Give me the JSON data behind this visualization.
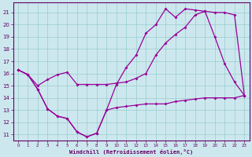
{
  "xlabel": "Windchill (Refroidissement éolien,°C)",
  "bg_color": "#cce8ee",
  "line_color": "#990099",
  "grid_color": "#99cccc",
  "axis_color": "#660066",
  "xlim": [
    -0.5,
    23.5
  ],
  "ylim": [
    10.5,
    21.8
  ],
  "xticks": [
    0,
    1,
    2,
    3,
    4,
    5,
    6,
    7,
    8,
    9,
    10,
    11,
    12,
    13,
    14,
    15,
    16,
    17,
    18,
    19,
    20,
    21,
    22,
    23
  ],
  "yticks": [
    11,
    12,
    13,
    14,
    15,
    16,
    17,
    18,
    19,
    20,
    21
  ],
  "line1_x": [
    0,
    1,
    2,
    3,
    4,
    5,
    6,
    7,
    8,
    9,
    10,
    11,
    12,
    13,
    14,
    15,
    16,
    17,
    18,
    19,
    20,
    21,
    22,
    23
  ],
  "line1_y": [
    16.3,
    15.9,
    14.7,
    13.1,
    12.5,
    12.3,
    11.2,
    10.8,
    11.1,
    13.0,
    13.2,
    13.3,
    13.4,
    13.5,
    13.5,
    13.5,
    13.7,
    13.8,
    13.9,
    14.0,
    14.0,
    14.0,
    14.0,
    14.2
  ],
  "line2_x": [
    0,
    1,
    2,
    3,
    4,
    5,
    6,
    7,
    8,
    9,
    10,
    11,
    12,
    13,
    14,
    15,
    16,
    17,
    18,
    19,
    20,
    21,
    22,
    23
  ],
  "line2_y": [
    16.3,
    15.9,
    14.7,
    13.1,
    12.5,
    12.3,
    11.2,
    10.8,
    11.1,
    13.0,
    15.1,
    16.5,
    17.5,
    19.3,
    20.0,
    21.3,
    20.6,
    21.3,
    21.2,
    21.1,
    19.0,
    16.8,
    15.3,
    14.2
  ],
  "line3_x": [
    0,
    1,
    2,
    3,
    4,
    5,
    6,
    7,
    8,
    9,
    10,
    11,
    12,
    13,
    14,
    15,
    16,
    17,
    18,
    19,
    20,
    21,
    22,
    23
  ],
  "line3_y": [
    16.3,
    15.9,
    15.0,
    15.5,
    15.9,
    16.1,
    15.1,
    15.1,
    15.1,
    15.1,
    15.2,
    15.3,
    15.6,
    16.0,
    17.5,
    18.5,
    19.2,
    19.8,
    20.8,
    21.1,
    21.0,
    21.0,
    20.8,
    14.2
  ]
}
